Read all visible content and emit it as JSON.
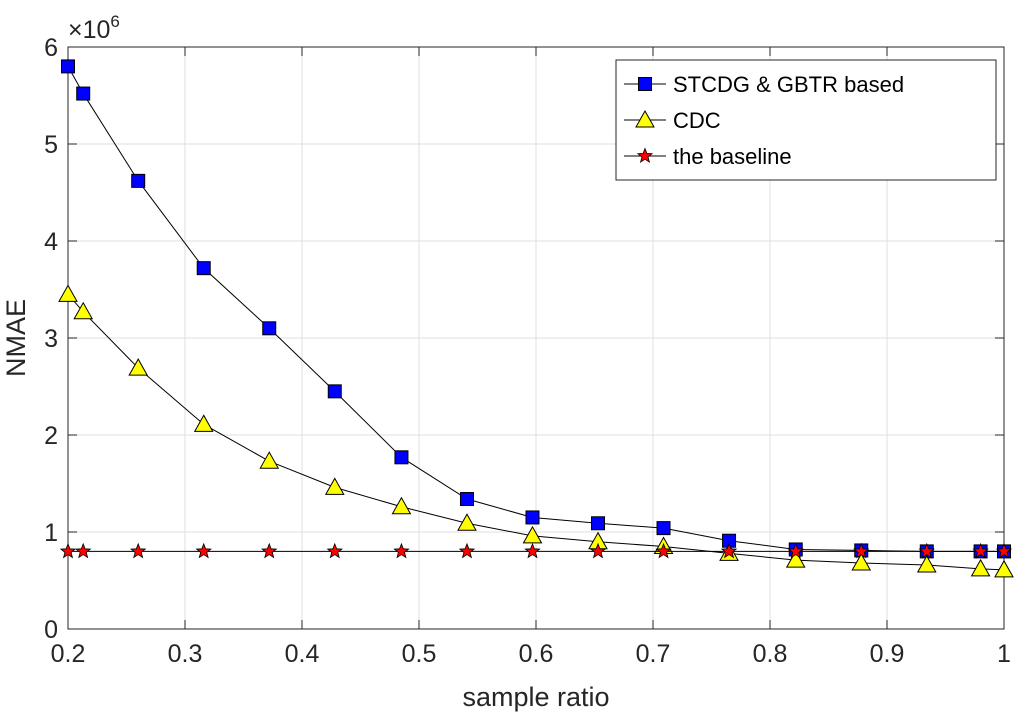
{
  "chart_data": {
    "type": "line",
    "xlabel": "sample ratio",
    "ylabel": "NMAE",
    "y_exponent_base": "×10",
    "y_exponent_power": "6",
    "xlim": [
      0.2,
      1.0
    ],
    "ylim": [
      0,
      6
    ],
    "x_ticks": [
      0.2,
      0.3,
      0.4,
      0.5,
      0.6,
      0.7,
      0.8,
      0.9,
      1.0
    ],
    "x_tick_labels": [
      "0.2",
      "0.3",
      "0.4",
      "0.5",
      "0.6",
      "0.7",
      "0.8",
      "0.9",
      "1"
    ],
    "y_ticks": [
      0,
      1,
      2,
      3,
      4,
      5,
      6
    ],
    "y_tick_labels": [
      "0",
      "1",
      "2",
      "3",
      "4",
      "5",
      "6"
    ],
    "grid": true,
    "legend_position": "top-right",
    "x": [
      0.2,
      0.213,
      0.26,
      0.316,
      0.372,
      0.428,
      0.485,
      0.541,
      0.597,
      0.653,
      0.709,
      0.765,
      0.822,
      0.878,
      0.934,
      0.98,
      1.0
    ],
    "series": [
      {
        "name": "STCDG & GBTR based",
        "marker": "square",
        "color": "#0000ff",
        "values": [
          5.8,
          5.52,
          4.62,
          3.72,
          3.1,
          2.45,
          1.77,
          1.34,
          1.15,
          1.09,
          1.04,
          0.91,
          0.82,
          0.81,
          0.8,
          0.8,
          0.8
        ]
      },
      {
        "name": "CDC",
        "marker": "triangle",
        "color": "#ffff00",
        "values": [
          3.45,
          3.27,
          2.69,
          2.11,
          1.73,
          1.46,
          1.26,
          1.09,
          0.96,
          0.9,
          0.85,
          0.78,
          0.71,
          0.68,
          0.66,
          0.62,
          0.61
        ]
      },
      {
        "name": "the baseline",
        "marker": "star",
        "color": "#ff0000",
        "values": [
          0.8,
          0.8,
          0.8,
          0.8,
          0.8,
          0.8,
          0.8,
          0.8,
          0.8,
          0.8,
          0.8,
          0.8,
          0.8,
          0.8,
          0.8,
          0.8,
          0.8
        ]
      }
    ]
  }
}
